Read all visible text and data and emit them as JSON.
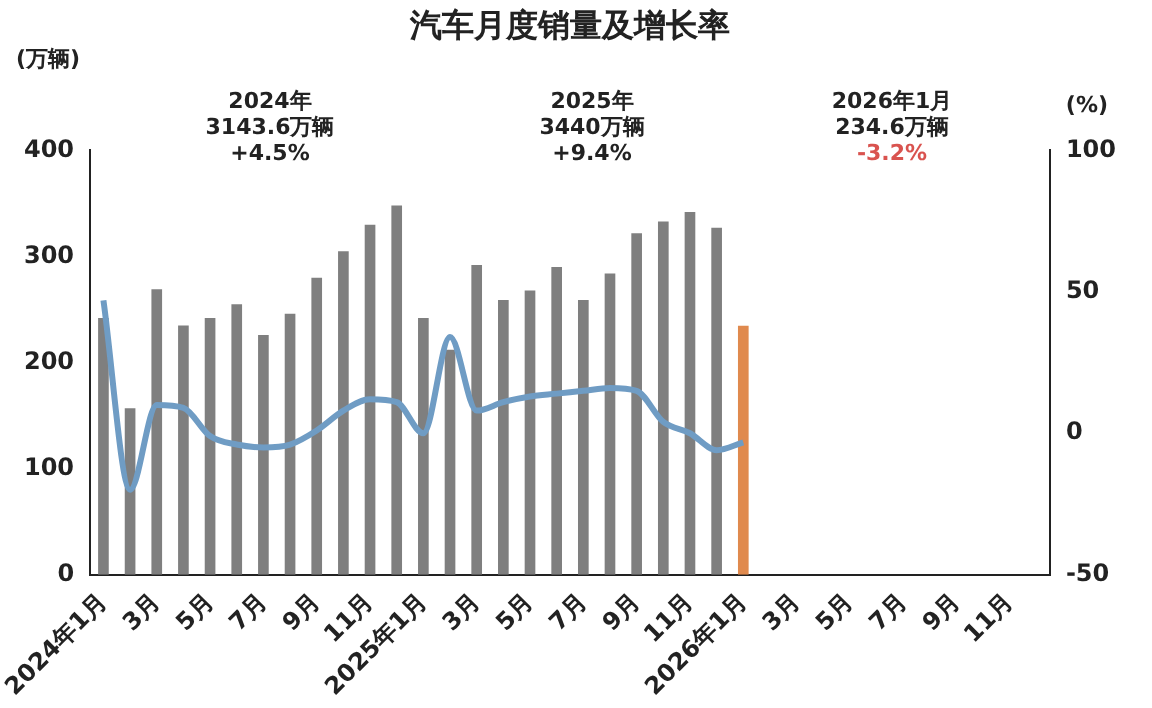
{
  "chart_data": {
    "type": "bar",
    "title": "汽车月度销量及增长率",
    "ylabel": "(万辆)",
    "y2label": "(%)",
    "categories": [
      "2024年1月",
      null,
      "3月",
      null,
      "5月",
      null,
      "7月",
      null,
      "9月",
      null,
      "11月",
      null,
      "2025年1月",
      null,
      "3月",
      null,
      "5月",
      null,
      "7月",
      null,
      "9月",
      null,
      "11月",
      null,
      "2026年1月",
      null,
      "3月",
      null,
      "5月",
      null,
      "7月",
      null,
      "9月",
      null,
      "11月",
      null
    ],
    "series": [
      {
        "colors": [
          "#7f7f7f",
          "#7f7f7f",
          "#7f7f7f",
          "#7f7f7f",
          "#7f7f7f",
          "#7f7f7f",
          "#7f7f7f",
          "#7f7f7f",
          "#7f7f7f",
          "#7f7f7f",
          "#7f7f7f",
          "#7f7f7f",
          "#7f7f7f",
          "#7f7f7f",
          "#7f7f7f",
          "#7f7f7f",
          "#7f7f7f",
          "#7f7f7f",
          "#7f7f7f",
          "#7f7f7f",
          "#7f7f7f",
          "#7f7f7f",
          "#7f7f7f",
          "#7f7f7f",
          "#e08a4e",
          null,
          null,
          null,
          null,
          null,
          null,
          null,
          null,
          null,
          null,
          null
        ],
        "values": [
          242,
          157,
          269,
          235,
          242,
          255,
          226,
          246,
          280,
          305,
          330,
          348,
          242,
          212,
          292,
          259,
          268,
          290,
          259,
          284,
          322,
          333,
          342,
          327,
          234.6,
          null,
          null,
          null,
          null,
          null,
          null,
          null,
          null,
          null,
          null,
          null
        ]
      },
      {
        "type": "line",
        "axis": "y2",
        "color": "#6f9cc4",
        "values": [
          47,
          -20,
          10,
          9,
          -1,
          -4,
          -5,
          -4,
          1,
          8,
          12,
          11,
          0,
          34,
          8,
          11,
          13,
          14,
          15,
          16,
          15,
          4,
          0,
          -6,
          -3.2,
          null,
          null,
          null,
          null,
          null,
          null,
          null,
          null,
          null,
          null,
          null
        ]
      }
    ],
    "ylim": [
      0,
      400
    ],
    "yticks": [
      0,
      100,
      200,
      300,
      400
    ],
    "y2lim": [
      -50,
      100
    ],
    "y2ticks": [
      -50,
      0,
      50,
      100
    ],
    "annotations": [
      "2024年\n3143.6万辆\n+4.5%",
      "2025年\n3440万辆\n+9.4%",
      "2026年1月\n234.6万辆\n-3.2%"
    ],
    "grid": false,
    "legend": false,
    "marker": "none"
  }
}
